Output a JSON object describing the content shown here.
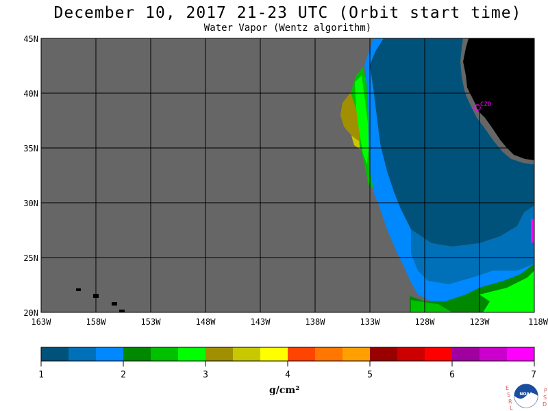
{
  "title": "December 10, 2017  21-23 UTC  (Orbit start time)",
  "subtitle": "Water Vapor (Wentz algorithm)",
  "map": {
    "lon_labels": [
      "163W",
      "158W",
      "153W",
      "148W",
      "143W",
      "138W",
      "133W",
      "128W",
      "123W",
      "118W"
    ],
    "lat_labels": [
      "45N",
      "40N",
      "35N",
      "30N",
      "25N",
      "20N"
    ],
    "lon_range": [
      -163,
      -118
    ],
    "lat_range": [
      20,
      45
    ],
    "station_label": "CZD",
    "colors": {
      "no_data": "#666666",
      "land": "#000000",
      "grid": "#000000",
      "station": "#ff00ff"
    }
  },
  "colorbar": {
    "tick_labels": [
      "1",
      "2",
      "3",
      "4",
      "5",
      "6",
      "7"
    ],
    "range": [
      1,
      7
    ],
    "colors": [
      "#00527a",
      "#0070b8",
      "#0088ff",
      "#008800",
      "#00c000",
      "#00ff00",
      "#a09000",
      "#c8c800",
      "#ffff00",
      "#ff4400",
      "#ff7700",
      "#ffa000",
      "#990000",
      "#cc0000",
      "#ff0000",
      "#a000a0",
      "#cc00cc",
      "#ff00ff"
    ],
    "units": "g/cm²"
  },
  "logo": {
    "left_letters": [
      "E",
      "S",
      "R",
      "L"
    ],
    "right_letters": [
      "P",
      "S",
      "D"
    ],
    "emblem_text": "NOAA"
  }
}
